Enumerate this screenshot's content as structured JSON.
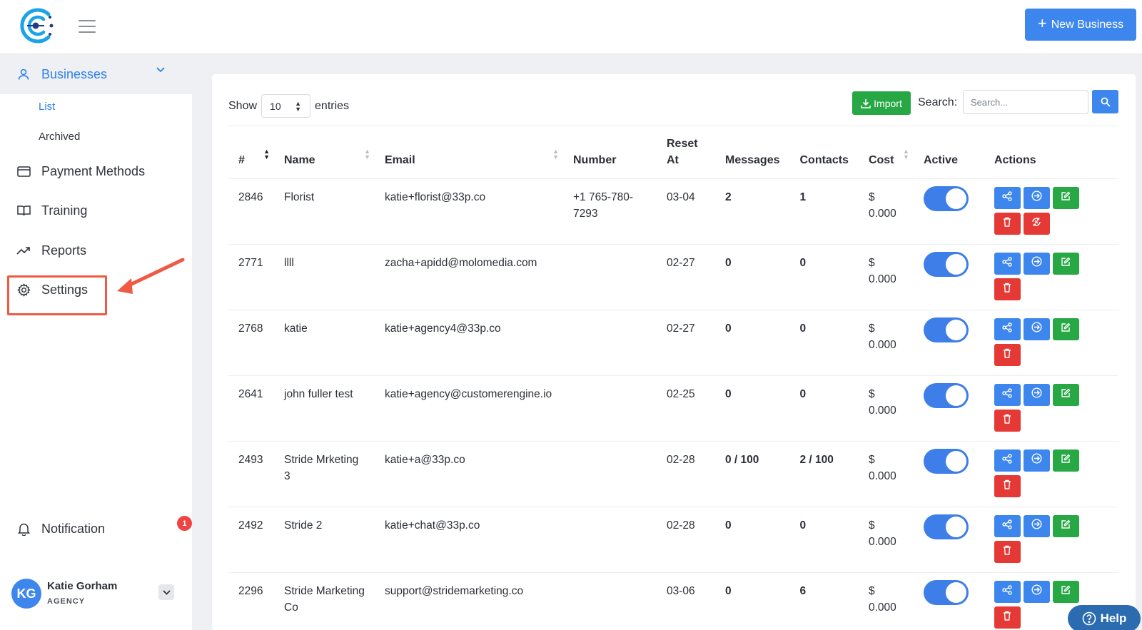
{
  "topbar": {
    "new_business_label": "New Business"
  },
  "sidebar": {
    "businesses_label": "Businesses",
    "sub_items": [
      "List",
      "Archived"
    ],
    "payment_methods_label": "Payment Methods",
    "training_label": "Training",
    "reports_label": "Reports",
    "settings_label": "Settings",
    "notification_label": "Notification",
    "notification_count": "1",
    "user": {
      "initials": "KG",
      "name": "Katie Gorham",
      "role": "AGENCY"
    }
  },
  "table_controls": {
    "show_label": "Show",
    "entries_value": "10",
    "entries_label": "entries",
    "import_label": "Import",
    "search_label": "Search:",
    "search_placeholder": "Search..."
  },
  "table": {
    "headers": [
      "#",
      "Name",
      "Email",
      "Number",
      "Reset At",
      "Messages",
      "Contacts",
      "Cost",
      "Active",
      "Actions"
    ],
    "rows": [
      {
        "id": "2846",
        "name": "Florist",
        "email": "katie+florist@33p.co",
        "number": "+1 765-780-7293",
        "reset_at": "03-04",
        "messages": "2",
        "contacts": "1",
        "cost": "$ 0.000",
        "active": true,
        "restore": true
      },
      {
        "id": "2771",
        "name": "llll",
        "email": "zacha+apidd@molomedia.com",
        "number": "",
        "reset_at": "02-27",
        "messages": "0",
        "contacts": "0",
        "cost": "$ 0.000",
        "active": true,
        "restore": false
      },
      {
        "id": "2768",
        "name": "katie",
        "email": "katie+agency4@33p.co",
        "number": "",
        "reset_at": "02-27",
        "messages": "0",
        "contacts": "0",
        "cost": "$ 0.000",
        "active": true,
        "restore": false
      },
      {
        "id": "2641",
        "name": "john fuller test",
        "email": "katie+agency@customerengine.io",
        "number": "",
        "reset_at": "02-25",
        "messages": "0",
        "contacts": "0",
        "cost": "$ 0.000",
        "active": true,
        "restore": false
      },
      {
        "id": "2493",
        "name": "Stride Mrketing 3",
        "email": "katie+a@33p.co",
        "number": "",
        "reset_at": "02-28",
        "messages": "0 / 100",
        "contacts": "2 / 100",
        "cost": "$ 0.000",
        "active": true,
        "restore": false
      },
      {
        "id": "2492",
        "name": "Stride 2",
        "email": "katie+chat@33p.co",
        "number": "",
        "reset_at": "02-28",
        "messages": "0",
        "contacts": "0",
        "cost": "$ 0.000",
        "active": true,
        "restore": false
      },
      {
        "id": "2296",
        "name": "Stride Marketing Co",
        "email": "support@stridemarketing.co",
        "number": "",
        "reset_at": "03-06",
        "messages": "0",
        "contacts": "6",
        "cost": "$ 0.000",
        "active": true,
        "restore": false
      }
    ]
  },
  "help_label": "Help",
  "colors": {
    "primary": "#3d86ee",
    "success": "#28a745",
    "danger": "#e53935",
    "annotation": "#ef5a45"
  }
}
